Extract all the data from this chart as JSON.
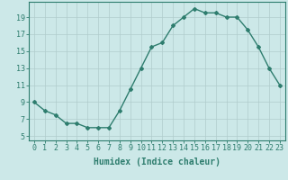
{
  "x": [
    0,
    1,
    2,
    3,
    4,
    5,
    6,
    7,
    8,
    9,
    10,
    11,
    12,
    13,
    14,
    15,
    16,
    17,
    18,
    19,
    20,
    21,
    22,
    23
  ],
  "y": [
    9,
    8,
    7.5,
    6.5,
    6.5,
    6,
    6,
    6,
    8,
    10.5,
    13,
    15.5,
    16,
    18,
    19,
    20,
    19.5,
    19.5,
    19,
    19,
    17.5,
    15.5,
    13,
    11
  ],
  "line_color": "#2e7d6e",
  "marker": "D",
  "marker_size": 2,
  "bg_color": "#cce8e8",
  "grid_color": "#b0cccc",
  "xlabel": "Humidex (Indice chaleur)",
  "xlabel_fontsize": 7,
  "ylabel_ticks": [
    5,
    7,
    9,
    11,
    13,
    15,
    17,
    19
  ],
  "xtick_labels": [
    "0",
    "1",
    "2",
    "3",
    "4",
    "5",
    "6",
    "7",
    "8",
    "9",
    "10",
    "11",
    "12",
    "13",
    "14",
    "15",
    "16",
    "17",
    "18",
    "19",
    "20",
    "21",
    "22",
    "23"
  ],
  "ylim": [
    4.5,
    20.8
  ],
  "xlim": [
    -0.5,
    23.5
  ],
  "tick_fontsize": 6,
  "linewidth": 1.0
}
